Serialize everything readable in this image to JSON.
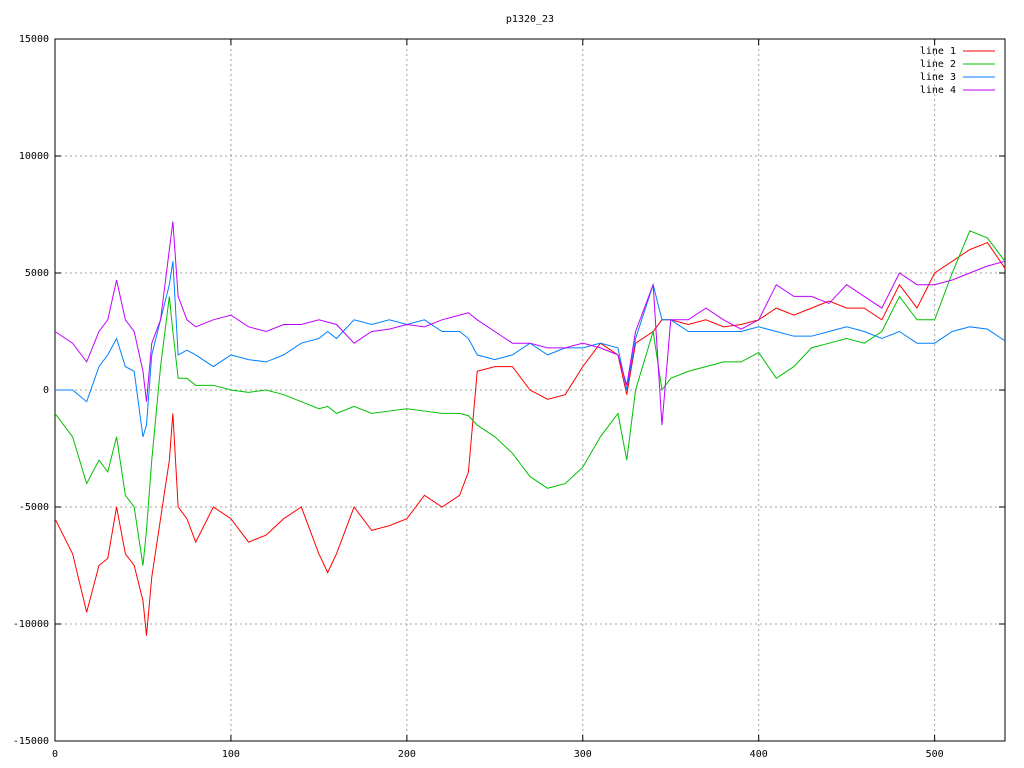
{
  "chart_data": {
    "type": "line",
    "title": "p1320_23",
    "x": [
      0,
      10,
      18,
      25,
      30,
      35,
      40,
      45,
      50,
      52,
      55,
      60,
      65,
      67,
      70,
      75,
      80,
      90,
      100,
      110,
      120,
      130,
      140,
      150,
      155,
      160,
      170,
      180,
      190,
      200,
      210,
      220,
      230,
      235,
      240,
      250,
      260,
      270,
      280,
      290,
      300,
      310,
      320,
      325,
      330,
      340,
      345,
      350,
      360,
      370,
      380,
      390,
      400,
      410,
      420,
      430,
      440,
      450,
      460,
      470,
      480,
      490,
      500,
      510,
      520,
      530,
      540
    ],
    "series": [
      {
        "name": "line 1",
        "color": "#ff0000",
        "values": [
          -5500,
          -7000,
          -9500,
          -7500,
          -7200,
          -5000,
          -7000,
          -7500,
          -9000,
          -10500,
          -8000,
          -5500,
          -3000,
          -1000,
          -5000,
          -5500,
          -6500,
          -5000,
          -5500,
          -6500,
          -6200,
          -5500,
          -5000,
          -7000,
          -7800,
          -7000,
          -5000,
          -6000,
          -5800,
          -5500,
          -4500,
          -5000,
          -4500,
          -3500,
          800,
          1000,
          1000,
          0,
          -400,
          -200,
          1000,
          2000,
          1500,
          -200,
          2000,
          2500,
          3000,
          3000,
          2800,
          3000,
          2700,
          2800,
          3000,
          3500,
          3200,
          3500,
          3800,
          3500,
          3500,
          3000,
          4500,
          3500,
          5000,
          5500,
          6000,
          6300,
          5200
        ]
      },
      {
        "name": "line 2",
        "color": "#00c000",
        "values": [
          -1000,
          -2000,
          -4000,
          -3000,
          -3500,
          -2000,
          -4500,
          -5000,
          -7500,
          -6000,
          -3000,
          1000,
          4000,
          2500,
          500,
          500,
          200,
          200,
          0,
          -100,
          0,
          -200,
          -500,
          -800,
          -700,
          -1000,
          -700,
          -1000,
          -900,
          -800,
          -900,
          -1000,
          -1000,
          -1100,
          -1500,
          -2000,
          -2700,
          -3700,
          -4200,
          -4000,
          -3300,
          -2000,
          -1000,
          -3000,
          0,
          2500,
          0,
          500,
          800,
          1000,
          1200,
          1200,
          1600,
          500,
          1000,
          1800,
          2000,
          2200,
          2000,
          2500,
          4000,
          3000,
          3000,
          5000,
          6800,
          6500,
          5500
        ]
      },
      {
        "name": "line 3",
        "color": "#0080ff",
        "values": [
          0,
          0,
          -500,
          1000,
          1500,
          2200,
          1000,
          800,
          -2000,
          -1500,
          1500,
          3000,
          4500,
          5500,
          1500,
          1700,
          1500,
          1000,
          1500,
          1300,
          1200,
          1500,
          2000,
          2200,
          2500,
          2200,
          3000,
          2800,
          3000,
          2800,
          3000,
          2500,
          2500,
          2200,
          1500,
          1300,
          1500,
          2000,
          1500,
          1800,
          1800,
          2000,
          1800,
          0,
          2200,
          4500,
          3000,
          3000,
          2500,
          2500,
          2500,
          2500,
          2700,
          2500,
          2300,
          2300,
          2500,
          2700,
          2500,
          2200,
          2500,
          2000,
          2000,
          2500,
          2700,
          2600,
          2100
        ]
      },
      {
        "name": "line 4",
        "color": "#c000ff",
        "values": [
          2500,
          2000,
          1200,
          2500,
          3000,
          4700,
          3000,
          2500,
          800,
          -500,
          2000,
          3000,
          6000,
          7200,
          4000,
          3000,
          2700,
          3000,
          3200,
          2700,
          2500,
          2800,
          2800,
          3000,
          2900,
          2800,
          2000,
          2500,
          2600,
          2800,
          2700,
          3000,
          3200,
          3300,
          3000,
          2500,
          2000,
          2000,
          1800,
          1800,
          2000,
          1800,
          1500,
          200,
          2500,
          4500,
          -1500,
          3000,
          3000,
          3500,
          3000,
          2600,
          3000,
          4500,
          4000,
          4000,
          3700,
          4500,
          4000,
          3500,
          5000,
          4500,
          4500,
          4700,
          5000,
          5300,
          5500
        ]
      }
    ],
    "xlim": [
      0,
      540
    ],
    "xticks": [
      0,
      100,
      200,
      300,
      400,
      500
    ],
    "ylim": [
      -15000,
      15000
    ],
    "yticks": [
      -15000,
      -10000,
      -5000,
      0,
      5000,
      10000,
      15000
    ],
    "grid": true,
    "legend": "top-right"
  }
}
